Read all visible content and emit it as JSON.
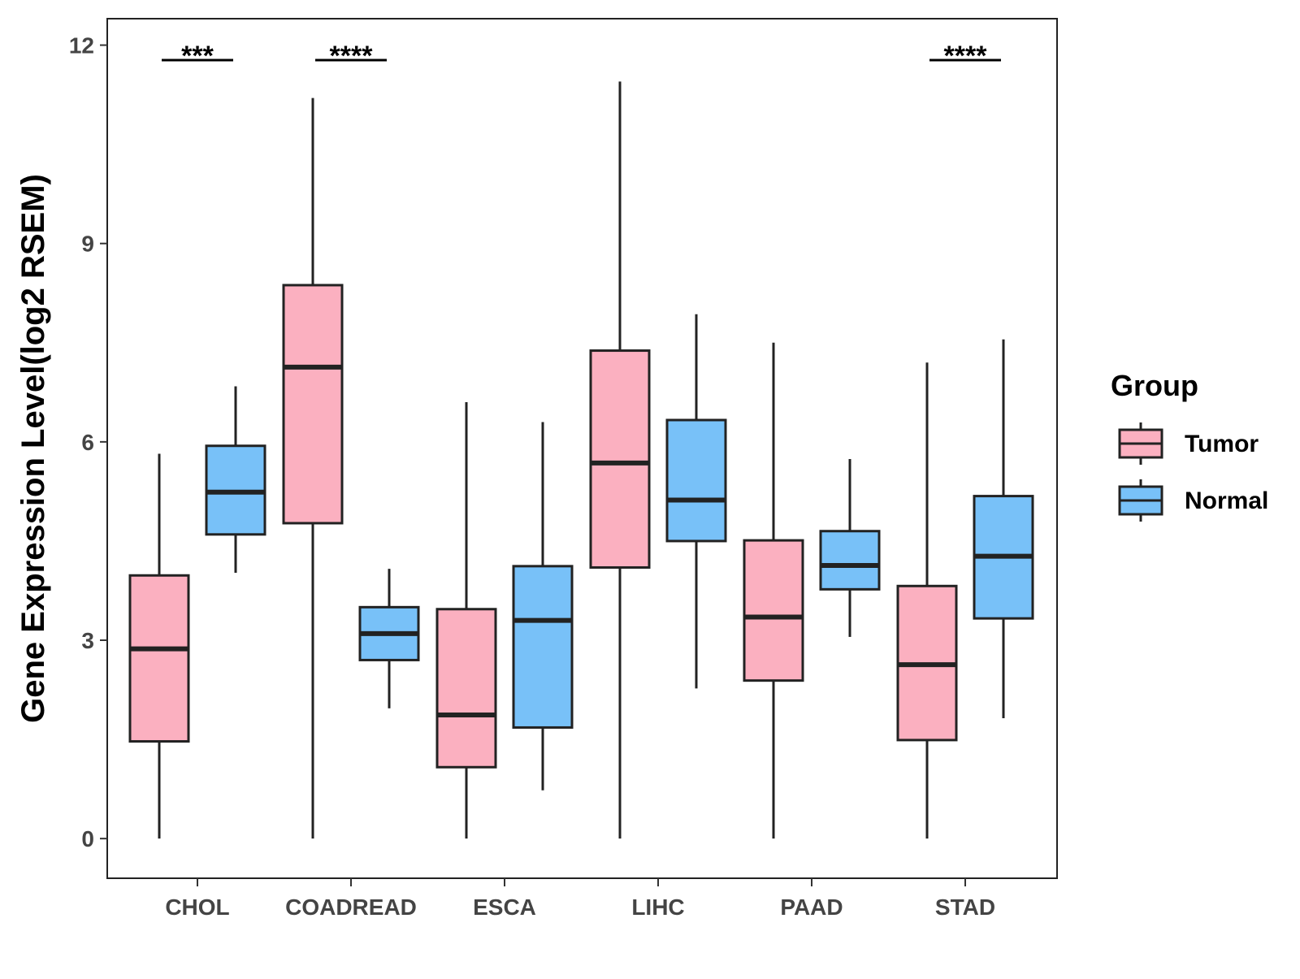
{
  "chart_data": {
    "type": "boxplot",
    "title": "",
    "xlabel": "",
    "ylabel": "Gene Expression Level(log2 RSEM)",
    "ylim": [
      -0.6,
      12.4
    ],
    "yticks": [
      0,
      3,
      6,
      9,
      12
    ],
    "ytick_labels": [
      "0",
      "3",
      "6",
      "9",
      "12"
    ],
    "categories": [
      "CHOL",
      "COADREAD",
      "ESCA",
      "LIHC",
      "PAAD",
      "STAD"
    ],
    "legend": {
      "title": "Group",
      "placement": "right",
      "items": [
        {
          "label": "Tumor",
          "color": "#FBB0C0"
        },
        {
          "label": "Normal",
          "color": "#78C1F8"
        }
      ]
    },
    "series": [
      {
        "name": "Tumor",
        "color": "#FBB0C0",
        "boxes": [
          {
            "min": 0.0,
            "q1": 1.47,
            "median": 2.87,
            "q3": 3.98,
            "max": 5.82
          },
          {
            "min": 0.0,
            "q1": 4.77,
            "median": 7.13,
            "q3": 8.37,
            "max": 11.2
          },
          {
            "min": 0.0,
            "q1": 1.08,
            "median": 1.87,
            "q3": 3.47,
            "max": 6.6
          },
          {
            "min": 0.0,
            "q1": 4.1,
            "median": 5.68,
            "q3": 7.38,
            "max": 11.45
          },
          {
            "min": 0.0,
            "q1": 2.39,
            "median": 3.35,
            "q3": 4.51,
            "max": 7.5
          },
          {
            "min": 0.0,
            "q1": 1.49,
            "median": 2.63,
            "q3": 3.82,
            "max": 7.2
          }
        ]
      },
      {
        "name": "Normal",
        "color": "#78C1F8",
        "boxes": [
          {
            "min": 4.02,
            "q1": 4.6,
            "median": 5.24,
            "q3": 5.94,
            "max": 6.84
          },
          {
            "min": 1.97,
            "q1": 2.7,
            "median": 3.1,
            "q3": 3.5,
            "max": 4.08
          },
          {
            "min": 0.73,
            "q1": 1.68,
            "median": 3.3,
            "q3": 4.12,
            "max": 6.3
          },
          {
            "min": 2.27,
            "q1": 4.5,
            "median": 5.12,
            "q3": 6.33,
            "max": 7.93
          },
          {
            "min": 3.05,
            "q1": 3.77,
            "median": 4.13,
            "q3": 4.65,
            "max": 5.74
          },
          {
            "min": 1.82,
            "q1": 3.33,
            "median": 4.27,
            "q3": 5.18,
            "max": 7.55
          }
        ]
      }
    ],
    "significance": [
      {
        "category": "CHOL",
        "label": "***"
      },
      {
        "category": "COADREAD",
        "label": "****"
      },
      {
        "category": "STAD",
        "label": "****"
      }
    ]
  }
}
